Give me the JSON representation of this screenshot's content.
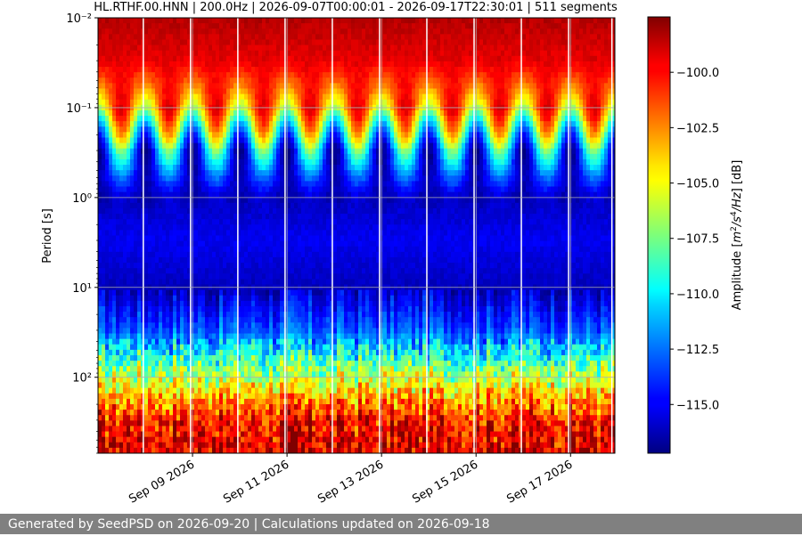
{
  "chart_data": {
    "type": "heatmap",
    "title": "HL.RTHF.00.HNN | 200.0Hz | 2026-09-07T00:00:01 - 2026-09-17T22:30:01 | 511 segments",
    "xlabel": "",
    "ylabel": "Period [s]",
    "colorbar_label": "Amplitude [m²/s⁴/Hz] [dB]",
    "colormap": "jet",
    "x_range": [
      "2026-09-07T00:00:01",
      "2026-09-17T22:30:01"
    ],
    "x_ticks": [
      "Sep 09 2026",
      "Sep 11 2026",
      "Sep 13 2026",
      "Sep 15 2026",
      "Sep 17 2026"
    ],
    "y_scale": "log",
    "y_inverted": true,
    "y_range": [
      0.01,
      700
    ],
    "y_ticks": [
      "10⁻²",
      "10⁻¹",
      "10⁰",
      "10¹",
      "10²"
    ],
    "color_range": [
      -117.2,
      -97.5
    ],
    "color_ticks": [
      "−100.0",
      "−102.5",
      "−105.0",
      "−107.5",
      "−110.0",
      "−112.5",
      "−115.0"
    ],
    "grid": true,
    "data_gaps": [
      "2026-09-07T23:00",
      "2026-09-08T23:00",
      "2026-09-09T23:00",
      "2026-09-10T23:00",
      "2026-09-11T23:00",
      "2026-09-12T23:00",
      "2026-09-13T23:00",
      "2026-09-14T23:00",
      "2026-09-15T23:00",
      "2026-09-16T23:00",
      "2026-09-17T21:00"
    ],
    "approx_amplitude_by_period": [
      {
        "period_s": 0.01,
        "db": -98.5
      },
      {
        "period_s": 0.03,
        "db": -99.5
      },
      {
        "period_s": 0.1,
        "db": -103
      },
      {
        "period_s": 0.3,
        "db": -112
      },
      {
        "period_s": 1,
        "db": -116
      },
      {
        "period_s": 3,
        "db": -115
      },
      {
        "period_s": 10,
        "db": -116
      },
      {
        "period_s": 30,
        "db": -113
      },
      {
        "period_s": 100,
        "db": -106
      },
      {
        "period_s": 300,
        "db": -100
      },
      {
        "period_s": 700,
        "db": -99
      }
    ]
  },
  "footer": {
    "text": "Generated by SeedPSD on 2026-09-20 | Calculations updated on 2026-09-18"
  }
}
